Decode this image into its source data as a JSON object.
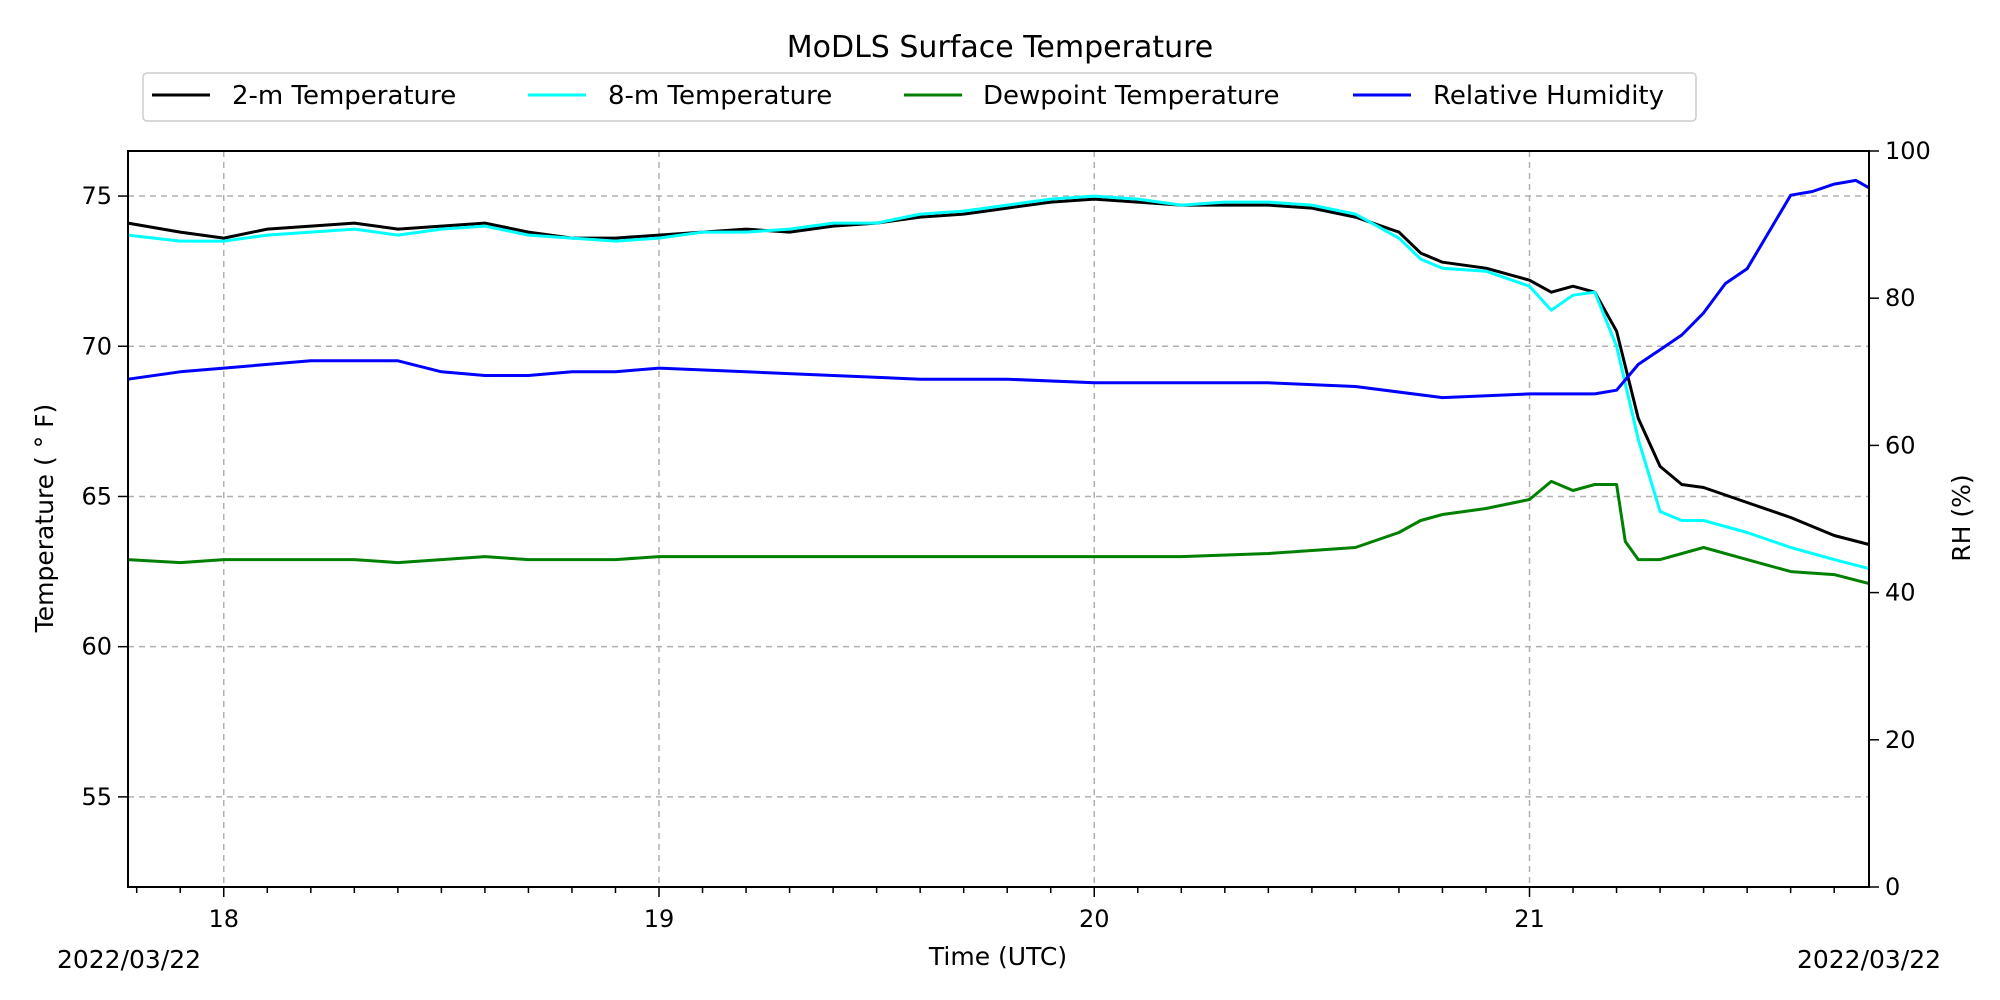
{
  "chart_data": {
    "type": "line",
    "title": "MoDLS Surface Temperature",
    "xlabel": "Time (UTC)",
    "ylabel": "Temperature ($^\\circ$F)",
    "ylabel_display": "Temperature ( ° F)",
    "y2label": "RH (%)",
    "x_unit": "hour UTC",
    "xlim": [
      17.78,
      21.78
    ],
    "ylim": [
      52,
      76.5
    ],
    "y2lim": [
      0,
      100
    ],
    "x_ticks": [
      {
        "value": 18,
        "label": "18"
      },
      {
        "value": 19,
        "label": "19"
      },
      {
        "value": 20,
        "label": "20"
      },
      {
        "value": 21,
        "label": "21"
      }
    ],
    "y_ticks": [
      {
        "value": 55,
        "label": "55"
      },
      {
        "value": 60,
        "label": "60"
      },
      {
        "value": 65,
        "label": "65"
      },
      {
        "value": 70,
        "label": "70"
      },
      {
        "value": 75,
        "label": "75"
      }
    ],
    "y2_ticks": [
      {
        "value": 0,
        "label": "0"
      },
      {
        "value": 20,
        "label": "20"
      },
      {
        "value": 40,
        "label": "40"
      },
      {
        "value": 60,
        "label": "60"
      },
      {
        "value": 80,
        "label": "80"
      },
      {
        "value": 100,
        "label": "100"
      }
    ],
    "start_date": "2022/03/22",
    "end_date": "2022/03/22",
    "grid": true,
    "legend_position": "top-center",
    "series": [
      {
        "name": "2-m Temperature",
        "color": "#000000",
        "axis": "left",
        "x": [
          17.78,
          17.9,
          18.0,
          18.1,
          18.2,
          18.3,
          18.4,
          18.5,
          18.6,
          18.7,
          18.8,
          18.9,
          19.0,
          19.1,
          19.2,
          19.3,
          19.4,
          19.5,
          19.6,
          19.7,
          19.8,
          19.9,
          20.0,
          20.1,
          20.2,
          20.3,
          20.4,
          20.5,
          20.6,
          20.7,
          20.75,
          20.8,
          20.9,
          21.0,
          21.05,
          21.1,
          21.15,
          21.2,
          21.25,
          21.3,
          21.35,
          21.4,
          21.5,
          21.6,
          21.7,
          21.78
        ],
        "y": [
          74.1,
          73.8,
          73.6,
          73.9,
          74.0,
          74.1,
          73.9,
          74.0,
          74.1,
          73.8,
          73.6,
          73.6,
          73.7,
          73.8,
          73.9,
          73.8,
          74.0,
          74.1,
          74.3,
          74.4,
          74.6,
          74.8,
          74.9,
          74.8,
          74.7,
          74.7,
          74.7,
          74.6,
          74.3,
          73.8,
          73.1,
          72.8,
          72.6,
          72.2,
          71.8,
          72.0,
          71.8,
          70.5,
          67.6,
          66.0,
          65.4,
          65.3,
          64.8,
          64.3,
          63.7,
          63.4
        ]
      },
      {
        "name": "8-m Temperature",
        "color": "#00ffff",
        "axis": "left",
        "x": [
          17.78,
          17.9,
          18.0,
          18.1,
          18.2,
          18.3,
          18.4,
          18.5,
          18.6,
          18.7,
          18.8,
          18.9,
          19.0,
          19.1,
          19.2,
          19.3,
          19.4,
          19.5,
          19.6,
          19.7,
          19.8,
          19.9,
          20.0,
          20.1,
          20.2,
          20.3,
          20.4,
          20.5,
          20.6,
          20.7,
          20.75,
          20.8,
          20.9,
          21.0,
          21.05,
          21.1,
          21.15,
          21.2,
          21.25,
          21.3,
          21.35,
          21.4,
          21.5,
          21.6,
          21.7,
          21.78
        ],
        "y": [
          73.7,
          73.5,
          73.5,
          73.7,
          73.8,
          73.9,
          73.7,
          73.9,
          74.0,
          73.7,
          73.6,
          73.5,
          73.6,
          73.8,
          73.8,
          73.9,
          74.1,
          74.1,
          74.4,
          74.5,
          74.7,
          74.9,
          75.0,
          74.9,
          74.7,
          74.8,
          74.8,
          74.7,
          74.4,
          73.6,
          72.9,
          72.6,
          72.5,
          72.0,
          71.2,
          71.7,
          71.8,
          70.0,
          66.9,
          64.5,
          64.2,
          64.2,
          63.8,
          63.3,
          62.9,
          62.6
        ]
      },
      {
        "name": "Dewpoint Temperature",
        "color": "#008000",
        "axis": "left",
        "x": [
          17.78,
          17.9,
          18.0,
          18.1,
          18.2,
          18.3,
          18.4,
          18.5,
          18.6,
          18.7,
          18.8,
          18.9,
          19.0,
          19.2,
          19.4,
          19.6,
          19.8,
          20.0,
          20.2,
          20.4,
          20.5,
          20.6,
          20.7,
          20.75,
          20.8,
          20.9,
          21.0,
          21.05,
          21.1,
          21.15,
          21.2,
          21.22,
          21.25,
          21.3,
          21.4,
          21.5,
          21.6,
          21.7,
          21.78
        ],
        "y": [
          62.9,
          62.8,
          62.9,
          62.9,
          62.9,
          62.9,
          62.8,
          62.9,
          63.0,
          62.9,
          62.9,
          62.9,
          63.0,
          63.0,
          63.0,
          63.0,
          63.0,
          63.0,
          63.0,
          63.1,
          63.2,
          63.3,
          63.8,
          64.2,
          64.4,
          64.6,
          64.9,
          65.5,
          65.2,
          65.4,
          65.4,
          63.5,
          62.9,
          62.9,
          63.3,
          62.9,
          62.5,
          62.4,
          62.1
        ]
      },
      {
        "name": "Relative Humidity",
        "color": "#0000ff",
        "axis": "right",
        "x": [
          17.78,
          17.9,
          18.0,
          18.1,
          18.2,
          18.3,
          18.4,
          18.5,
          18.6,
          18.7,
          18.8,
          18.9,
          19.0,
          19.2,
          19.4,
          19.6,
          19.8,
          20.0,
          20.2,
          20.4,
          20.6,
          20.8,
          21.0,
          21.1,
          21.15,
          21.2,
          21.25,
          21.3,
          21.35,
          21.4,
          21.45,
          21.5,
          21.55,
          21.6,
          21.65,
          21.7,
          21.75,
          21.78
        ],
        "y": [
          69,
          70,
          70.5,
          71,
          71.5,
          71.5,
          71.5,
          70,
          69.5,
          69.5,
          70,
          70,
          70.5,
          70,
          69.5,
          69,
          69,
          68.5,
          68.5,
          68.5,
          68,
          66.5,
          67,
          67,
          67,
          67.5,
          71,
          73,
          75,
          78,
          82,
          84,
          89,
          94,
          94.5,
          95.5,
          96,
          95
        ]
      }
    ]
  }
}
